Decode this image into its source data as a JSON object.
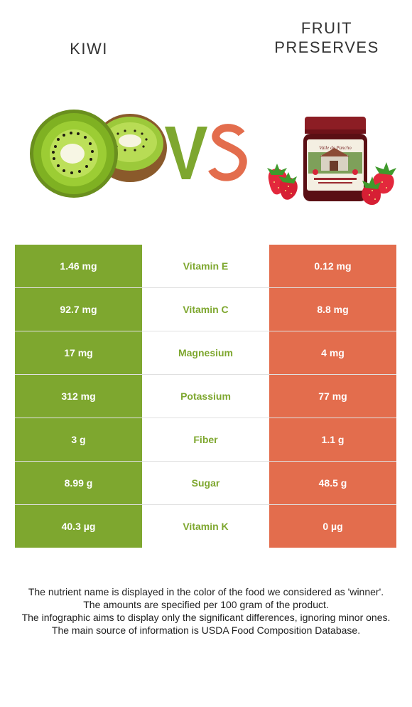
{
  "header": {
    "left_food": "KIWI",
    "right_food": "FRUIT PRESERVES",
    "vs_text": "VS",
    "jar_label": "Valle de Pancho"
  },
  "colors": {
    "kiwi_green": "#7ea72f",
    "preserves_red": "#e36d4d"
  },
  "rows": [
    {
      "nutrient": "Vitamin E",
      "left": "1.46 mg",
      "right": "0.12 mg",
      "winner": "left"
    },
    {
      "nutrient": "Vitamin C",
      "left": "92.7 mg",
      "right": "8.8 mg",
      "winner": "left"
    },
    {
      "nutrient": "Magnesium",
      "left": "17 mg",
      "right": "4 mg",
      "winner": "left"
    },
    {
      "nutrient": "Potassium",
      "left": "312 mg",
      "right": "77 mg",
      "winner": "left"
    },
    {
      "nutrient": "Fiber",
      "left": "3 g",
      "right": "1.1 g",
      "winner": "left"
    },
    {
      "nutrient": "Sugar",
      "left": "8.99 g",
      "right": "48.5 g",
      "winner": "left"
    },
    {
      "nutrient": "Vitamin K",
      "left": "40.3 µg",
      "right": "0 µg",
      "winner": "left"
    }
  ],
  "notes": [
    "The nutrient name is displayed in the color of the food we considered as 'winner'.",
    "The amounts are specified per 100 gram of the product.",
    "The infographic aims to display only the significant differences, ignoring minor ones.",
    "The main source of information is USDA Food Composition Database."
  ]
}
